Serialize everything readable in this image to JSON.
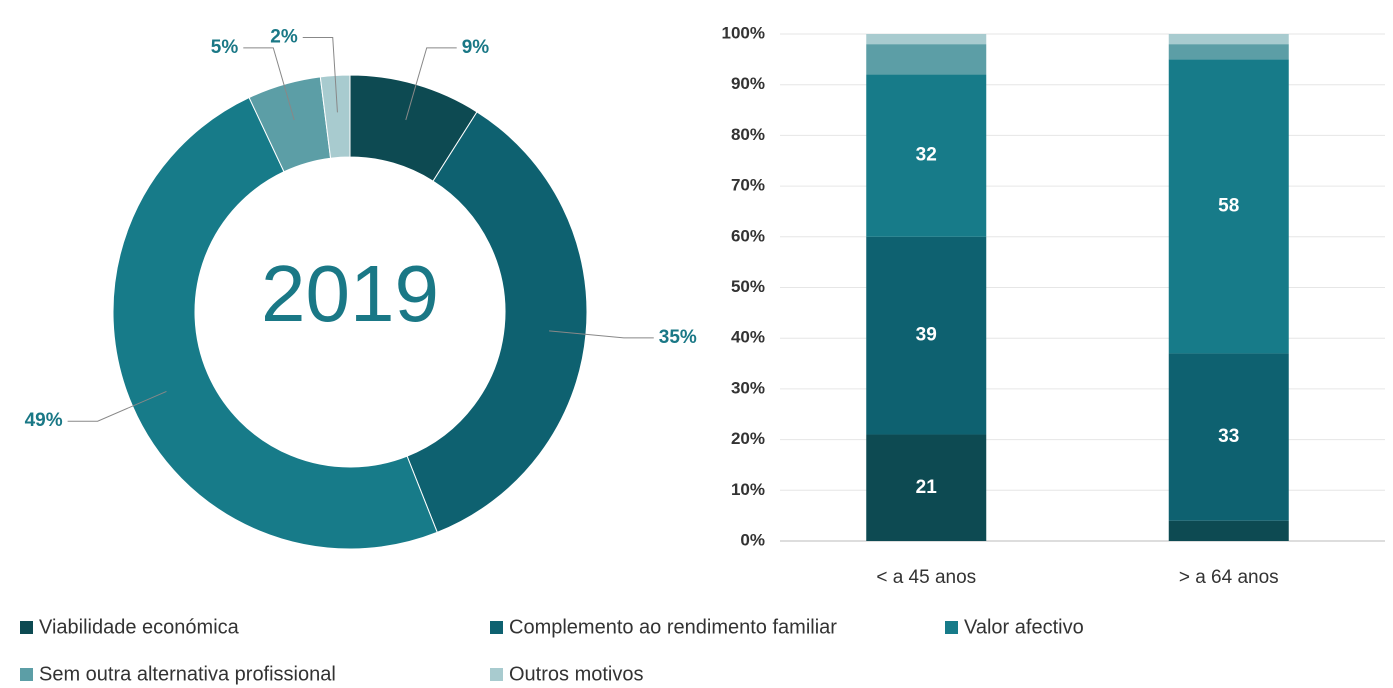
{
  "chart_data": [
    {
      "type": "pie",
      "title": "2019",
      "categories": [
        "Viabilidade económica",
        "Complemento ao rendimento familiar",
        "Valor afectivo",
        "Sem outra alternativa profissional",
        "Outros motivos"
      ],
      "values": [
        9,
        35,
        49,
        5,
        2
      ],
      "value_labels": [
        "9%",
        "35%",
        "49%",
        "5%",
        "2%"
      ],
      "colors": [
        "#0d4a52",
        "#0e6170",
        "#177b89",
        "#5c9ea6",
        "#a8cbcf"
      ]
    },
    {
      "type": "bar",
      "stacked": true,
      "categories": [
        "< a 45 anos",
        "> a 64 anos"
      ],
      "series": [
        {
          "name": "Viabilidade económica",
          "color": "#0d4a52",
          "values": [
            21,
            4
          ]
        },
        {
          "name": "Complemento ao rendimento familiar",
          "color": "#0e6170",
          "values": [
            39,
            33
          ]
        },
        {
          "name": "Valor afectivo",
          "color": "#177b89",
          "values": [
            32,
            58
          ]
        },
        {
          "name": "Sem outra alternativa profissional",
          "color": "#5c9ea6",
          "values": [
            6,
            3
          ]
        },
        {
          "name": "Outros motivos",
          "color": "#a8cbcf",
          "values": [
            2,
            2
          ]
        }
      ],
      "ylim": [
        0,
        100
      ],
      "yticks": [
        {
          "value": 0,
          "label": "0%"
        },
        {
          "value": 10,
          "label": "10%"
        },
        {
          "value": 20,
          "label": "20%"
        },
        {
          "value": 30,
          "label": "30%"
        },
        {
          "value": 40,
          "label": "40%"
        },
        {
          "value": 50,
          "label": "50%"
        },
        {
          "value": 60,
          "label": "60%"
        },
        {
          "value": 70,
          "label": "70%"
        },
        {
          "value": 80,
          "label": "80%"
        },
        {
          "value": 90,
          "label": "90%"
        },
        {
          "value": 100,
          "label": "100%"
        }
      ],
      "grid": true
    }
  ]
}
